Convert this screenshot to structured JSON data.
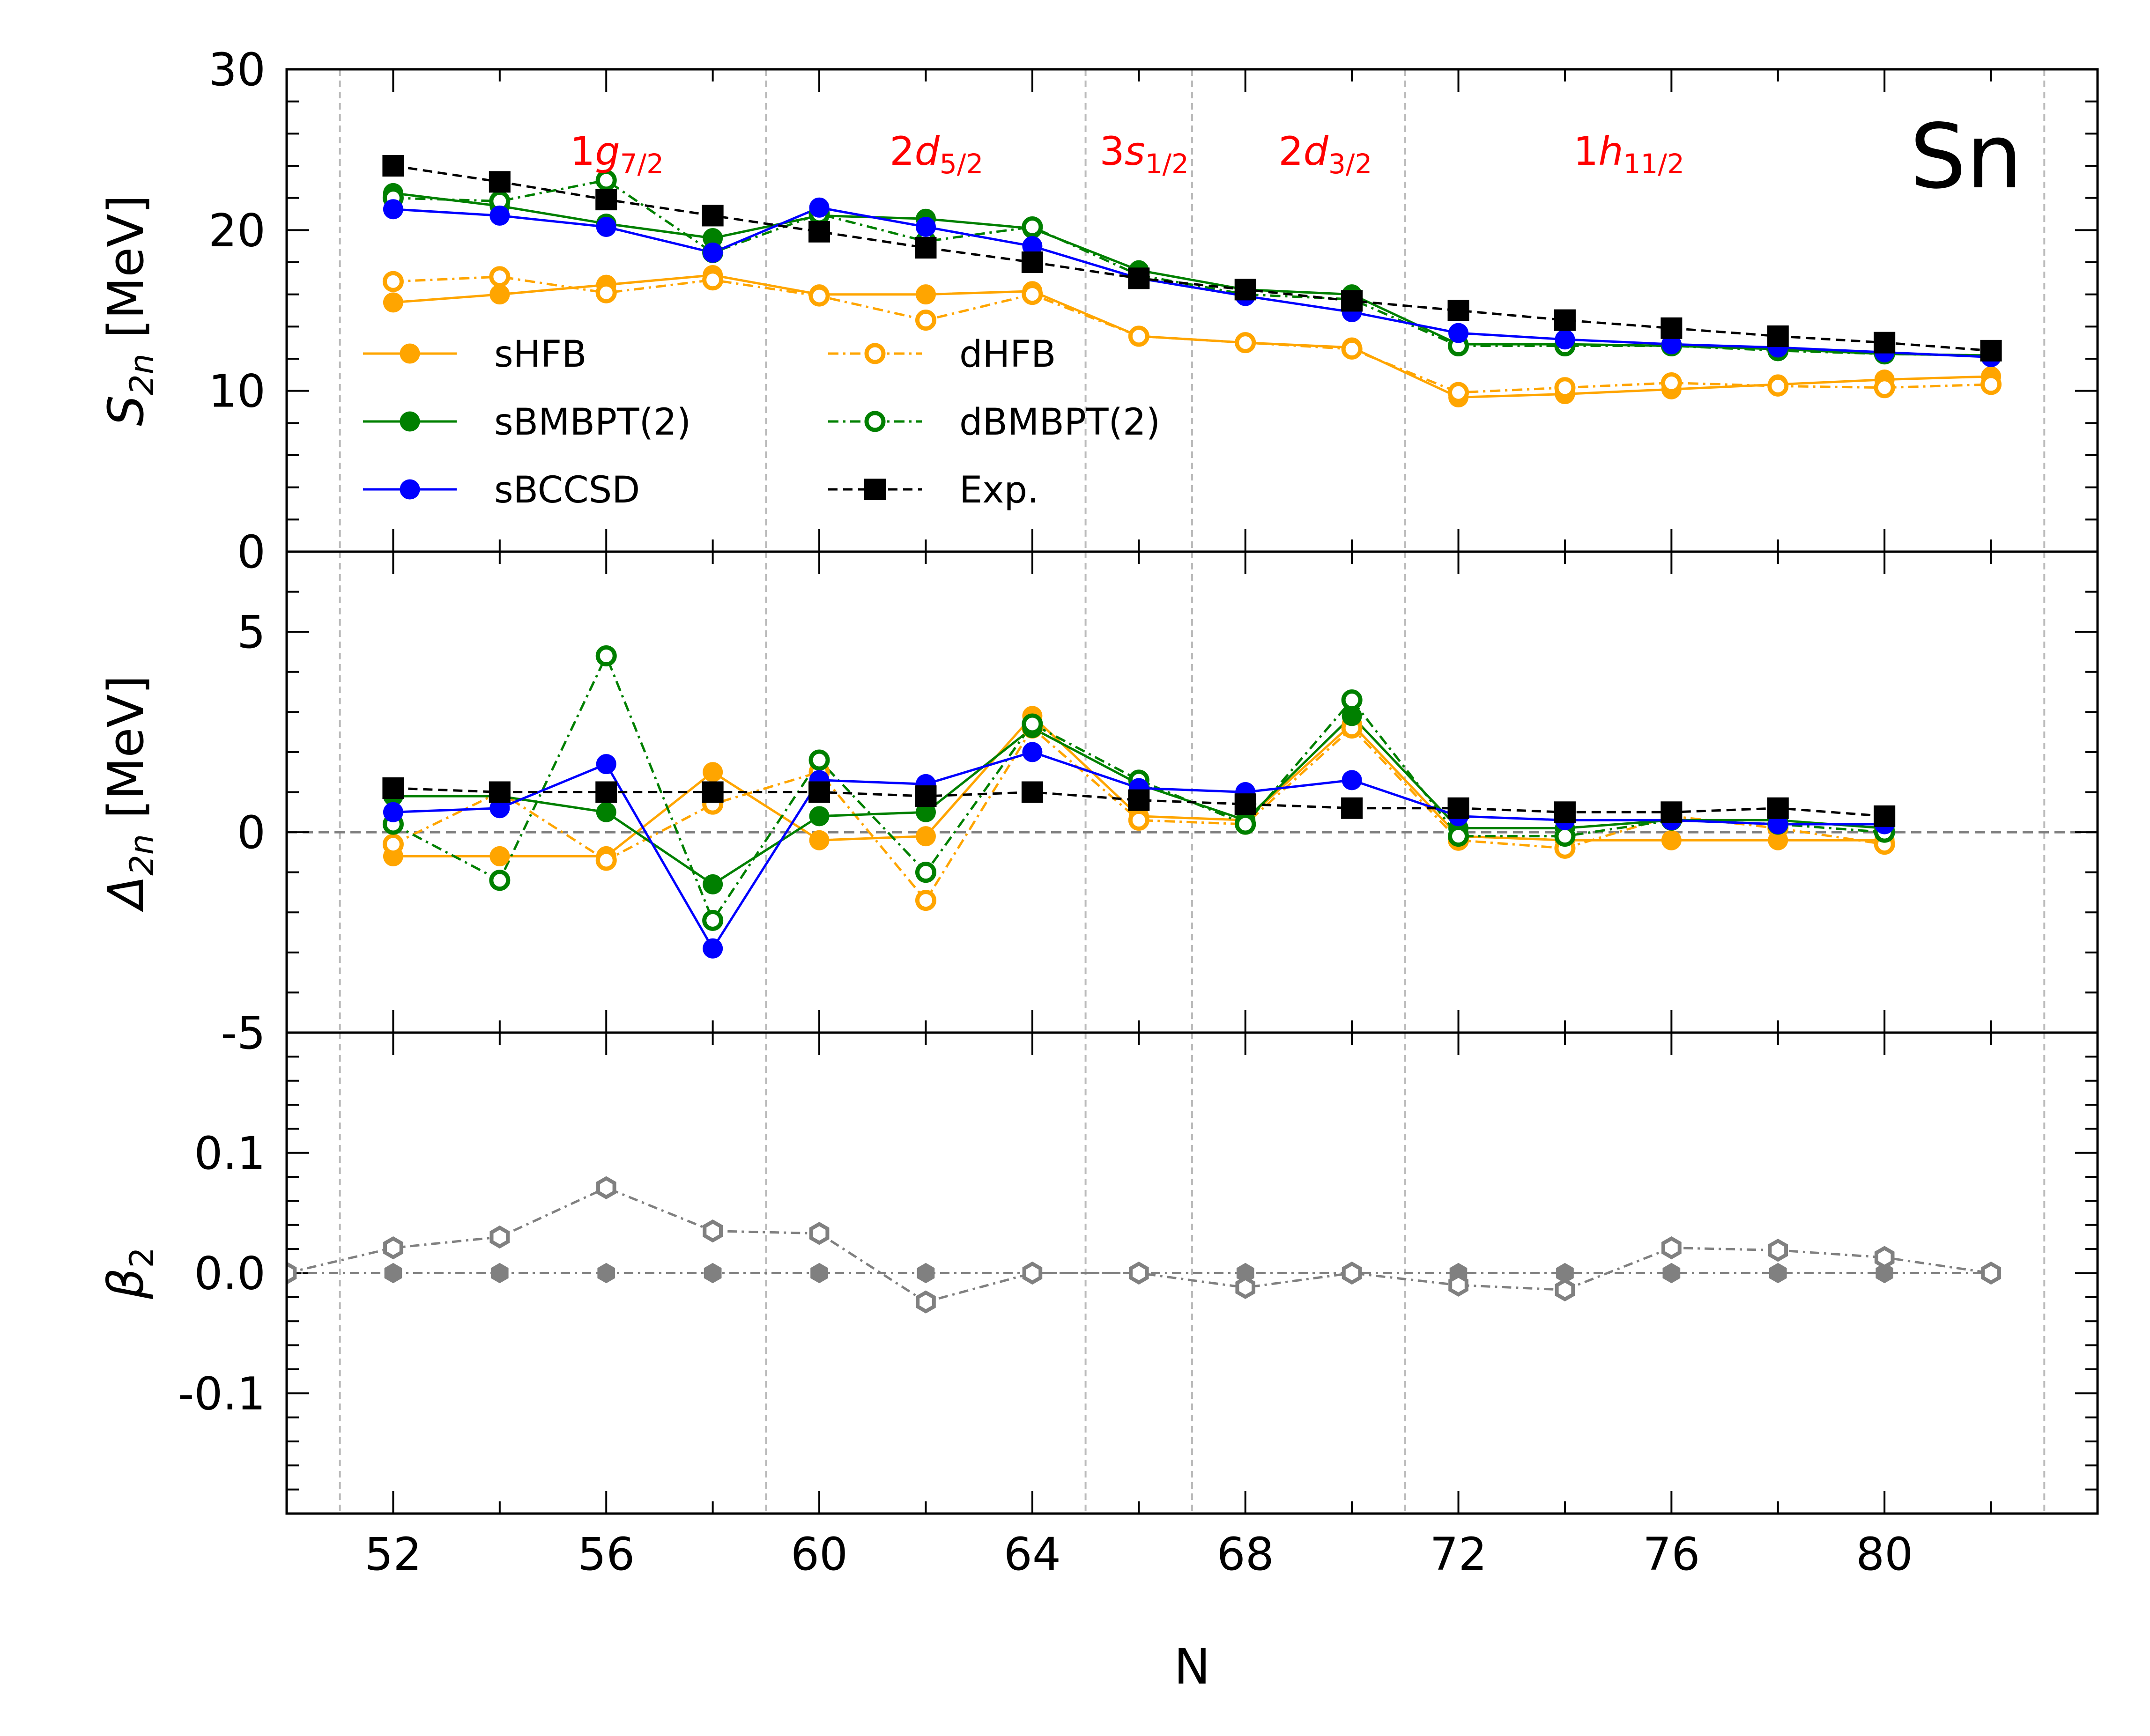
{
  "chart_data": {
    "type": "line",
    "element": "Sn",
    "xlabel": "N",
    "xlim": [
      50,
      84
    ],
    "x_ticks": [
      52,
      56,
      60,
      64,
      68,
      72,
      76,
      80
    ],
    "shell_boundaries": [
      51,
      59,
      65,
      67,
      71,
      83
    ],
    "shell_labels": [
      {
        "x": 56.2,
        "main": "1",
        "italic": "g",
        "sub": "7/2"
      },
      {
        "x": 62.2,
        "main": "2",
        "italic": "d",
        "sub": "5/2"
      },
      {
        "x": 66.1,
        "main": "3",
        "italic": "s",
        "sub": "1/2"
      },
      {
        "x": 69.5,
        "main": "2",
        "italic": "d",
        "sub": "3/2"
      },
      {
        "x": 75.2,
        "main": "1",
        "italic": "h",
        "sub": "11/2"
      }
    ],
    "colors": {
      "hfb": "#ffa500",
      "bmbpt": "#008000",
      "bccsd": "#0000ff",
      "exp": "#000000",
      "beta": "#808080",
      "shell": "#ff0000"
    },
    "legend": [
      {
        "label": "sHFB",
        "series": "sHFB"
      },
      {
        "label": "dHFB",
        "series": "dHFB"
      },
      {
        "label": "sBMBPT(2)",
        "series": "sBMBPT2"
      },
      {
        "label": "dBMBPT(2)",
        "series": "dBMBPT2"
      },
      {
        "label": "sBCCSD",
        "series": "sBCCSD"
      },
      {
        "label": "Exp.",
        "series": "Exp"
      }
    ],
    "panels": [
      {
        "id": "s2n",
        "ylabel_main": "S",
        "ylabel_sub": "2n",
        "ylabel_unit": "[MeV]",
        "ylim": [
          0,
          30
        ],
        "y_ticks": [
          0,
          10,
          20,
          30
        ],
        "y_tick_labels": [
          "0",
          "10",
          "20",
          "30"
        ],
        "series": [
          {
            "name": "sHFB",
            "style": "solid-filled",
            "color": "#ffa500",
            "x": [
              52,
              54,
              56,
              58,
              60,
              62,
              64,
              66,
              68,
              70,
              72,
              74,
              76,
              78,
              80,
              82
            ],
            "y": [
              15.5,
              16.0,
              16.6,
              17.2,
              16.0,
              16.0,
              16.2,
              13.4,
              13.0,
              12.7,
              9.6,
              9.8,
              10.1,
              10.4,
              10.7,
              10.9
            ]
          },
          {
            "name": "dHFB",
            "style": "dashdot-open",
            "color": "#ffa500",
            "x": [
              52,
              54,
              56,
              58,
              60,
              62,
              64,
              66,
              68,
              70,
              72,
              74,
              76,
              78,
              80,
              82
            ],
            "y": [
              16.8,
              17.1,
              16.1,
              16.9,
              15.9,
              14.4,
              16.0,
              13.4,
              13.0,
              12.6,
              9.9,
              10.2,
              10.5,
              10.3,
              10.2,
              10.4
            ]
          },
          {
            "name": "sBMBPT2",
            "style": "solid-filled",
            "color": "#008000",
            "x": [
              52,
              54,
              56,
              58,
              60,
              62,
              64,
              66,
              68,
              70,
              72,
              74,
              76,
              78,
              80,
              82
            ],
            "y": [
              22.3,
              21.5,
              20.4,
              19.5,
              20.9,
              20.7,
              20.1,
              17.5,
              16.3,
              16.0,
              12.9,
              12.9,
              12.8,
              12.6,
              12.3,
              12.2
            ]
          },
          {
            "name": "dBMBPT2",
            "style": "dashdot-open",
            "color": "#008000",
            "x": [
              52,
              54,
              56,
              58,
              60,
              62,
              64,
              66,
              68,
              70,
              72,
              74,
              76,
              78,
              80,
              82
            ],
            "y": [
              22.0,
              21.8,
              23.1,
              18.6,
              21.0,
              19.3,
              20.2,
              17.2,
              16.0,
              15.7,
              12.8,
              12.8,
              12.8,
              12.5,
              12.3,
              12.2
            ]
          },
          {
            "name": "sBCCSD",
            "style": "solid-filled",
            "color": "#0000ff",
            "x": [
              52,
              54,
              56,
              58,
              60,
              62,
              64,
              66,
              68,
              70,
              72,
              74,
              76,
              78,
              80,
              82
            ],
            "y": [
              21.3,
              20.9,
              20.2,
              18.6,
              21.4,
              20.2,
              19.0,
              17.0,
              15.9,
              14.9,
              13.6,
              13.2,
              12.9,
              12.7,
              12.4,
              12.1
            ]
          },
          {
            "name": "Exp",
            "style": "dashed-square",
            "color": "#000000",
            "x": [
              52,
              54,
              56,
              58,
              60,
              62,
              64,
              66,
              68,
              70,
              72,
              74,
              76,
              78,
              80,
              82
            ],
            "y": [
              24.0,
              23.0,
              21.9,
              20.9,
              19.9,
              18.9,
              18.0,
              17.0,
              16.3,
              15.6,
              15.0,
              14.4,
              13.9,
              13.4,
              13.0,
              12.5
            ]
          }
        ]
      },
      {
        "id": "d2n",
        "ylabel_main": "Δ",
        "ylabel_sub": "2n",
        "ylabel_unit": "[MeV]",
        "ylim": [
          -5,
          7
        ],
        "y_ticks": [
          -5,
          0,
          5
        ],
        "y_tick_labels": [
          "-5",
          "0",
          "5"
        ],
        "zero_line": true,
        "series": [
          {
            "name": "sHFB",
            "style": "solid-filled",
            "color": "#ffa500",
            "x": [
              52,
              54,
              56,
              58,
              60,
              62,
              64,
              66,
              68,
              70,
              72,
              74,
              76,
              78,
              80
            ],
            "y": [
              -0.6,
              -0.6,
              -0.6,
              1.5,
              -0.2,
              -0.1,
              2.9,
              0.4,
              0.3,
              2.7,
              -0.1,
              -0.2,
              -0.2,
              -0.2,
              -0.2
            ]
          },
          {
            "name": "dHFB",
            "style": "dashdot-open",
            "color": "#ffa500",
            "x": [
              52,
              54,
              56,
              58,
              60,
              62,
              64,
              66,
              68,
              70,
              72,
              74,
              76,
              78,
              80
            ],
            "y": [
              -0.3,
              1.0,
              -0.7,
              0.7,
              1.5,
              -1.7,
              2.6,
              0.3,
              0.2,
              2.6,
              -0.2,
              -0.4,
              0.4,
              0.1,
              -0.3
            ]
          },
          {
            "name": "sBMBPT2",
            "style": "solid-filled",
            "color": "#008000",
            "x": [
              52,
              54,
              56,
              58,
              60,
              62,
              64,
              66,
              68,
              70,
              72,
              74,
              76,
              78,
              80
            ],
            "y": [
              0.9,
              0.9,
              0.5,
              -1.3,
              0.4,
              0.5,
              2.6,
              1.2,
              0.3,
              2.9,
              0.1,
              0.1,
              0.3,
              0.3,
              0.1
            ]
          },
          {
            "name": "dBMBPT2",
            "style": "dashdot-open",
            "color": "#008000",
            "x": [
              52,
              54,
              56,
              58,
              60,
              62,
              64,
              66,
              68,
              70,
              72,
              74,
              76,
              78,
              80
            ],
            "y": [
              0.2,
              -1.2,
              4.4,
              -2.2,
              1.8,
              -1.0,
              2.7,
              1.3,
              0.2,
              3.3,
              -0.1,
              -0.1,
              0.3,
              0.2,
              0.0
            ]
          },
          {
            "name": "sBCCSD",
            "style": "solid-filled",
            "color": "#0000ff",
            "x": [
              52,
              54,
              56,
              58,
              60,
              62,
              64,
              66,
              68,
              70,
              72,
              74,
              76,
              78,
              80
            ],
            "y": [
              0.5,
              0.6,
              1.7,
              -2.9,
              1.3,
              1.2,
              2.0,
              1.1,
              1.0,
              1.3,
              0.4,
              0.3,
              0.3,
              0.2,
              0.2
            ]
          },
          {
            "name": "Exp",
            "style": "dashed-square",
            "color": "#000000",
            "x": [
              52,
              54,
              56,
              58,
              60,
              62,
              64,
              66,
              68,
              70,
              72,
              74,
              76,
              78,
              80
            ],
            "y": [
              1.1,
              1.0,
              1.0,
              1.0,
              1.0,
              0.9,
              1.0,
              0.8,
              0.7,
              0.6,
              0.6,
              0.5,
              0.5,
              0.6,
              0.4
            ]
          }
        ]
      },
      {
        "id": "beta2",
        "ylabel_main": "β",
        "ylabel_sub": "2",
        "ylabel_unit": "",
        "ylim": [
          -0.2,
          0.2
        ],
        "y_ticks": [
          -0.1,
          0.0,
          0.1
        ],
        "y_tick_labels": [
          "-0.1",
          "0.0",
          "0.1"
        ],
        "series": [
          {
            "name": "beta-spherical",
            "style": "beta-filled",
            "color": "#808080",
            "x": [
              50,
              52,
              54,
              56,
              58,
              60,
              62,
              64,
              66,
              68,
              70,
              72,
              74,
              76,
              78,
              80,
              82
            ],
            "y": [
              0,
              0,
              0,
              0,
              0,
              0,
              0,
              0,
              0,
              0,
              0,
              0,
              0,
              0,
              0,
              0,
              0
            ]
          },
          {
            "name": "beta-deformed",
            "style": "beta-open",
            "color": "#808080",
            "x": [
              50,
              52,
              54,
              56,
              58,
              60,
              62,
              64,
              66,
              68,
              70,
              72,
              74,
              76,
              78,
              80,
              82
            ],
            "y": [
              0.0,
              0.021,
              0.03,
              0.071,
              0.035,
              0.033,
              -0.024,
              0.0,
              0.0,
              -0.012,
              0.0,
              -0.01,
              -0.014,
              0.021,
              0.019,
              0.013,
              0.0
            ]
          }
        ]
      }
    ]
  }
}
